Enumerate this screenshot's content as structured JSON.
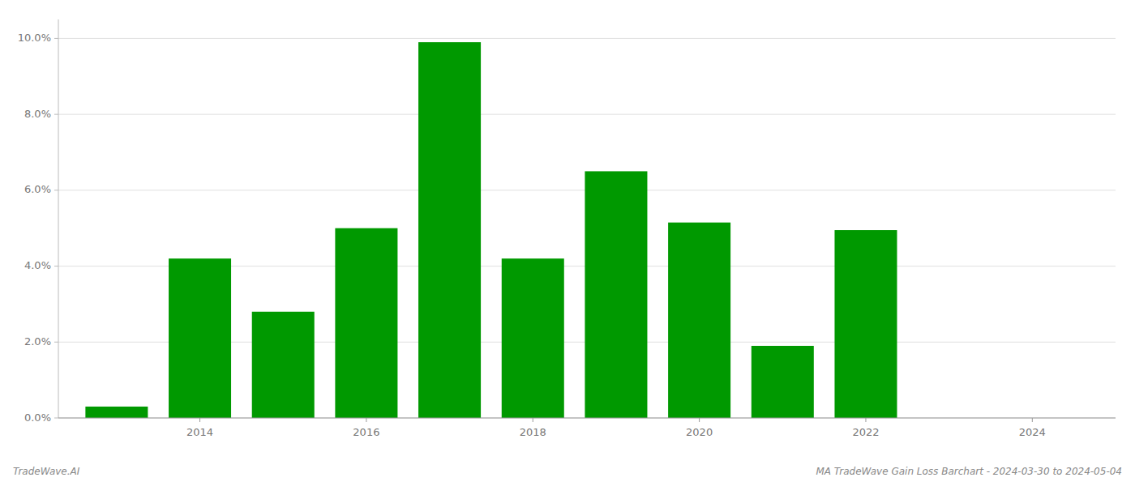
{
  "chart_data": {
    "type": "bar",
    "x": [
      2013,
      2014,
      2015,
      2016,
      2017,
      2018,
      2019,
      2020,
      2021,
      2022,
      2023
    ],
    "values": [
      0.003,
      0.042,
      0.028,
      0.05,
      0.099,
      0.042,
      0.065,
      0.0515,
      0.019,
      0.0495,
      0.0
    ],
    "color": "#009900",
    "xlim": [
      2012.3,
      2025.0
    ],
    "xticks": [
      2014,
      2016,
      2018,
      2020,
      2022,
      2024
    ],
    "ylim": [
      0,
      0.105
    ],
    "yticks": [
      {
        "value": 0.0,
        "label": "0.0%"
      },
      {
        "value": 0.02,
        "label": "2.0%"
      },
      {
        "value": 0.04,
        "label": "4.0%"
      },
      {
        "value": 0.06,
        "label": "6.0%"
      },
      {
        "value": 0.08,
        "label": "8.0%"
      },
      {
        "value": 0.1,
        "label": "10.0%"
      }
    ],
    "grid": true,
    "annotations": [
      "TradeWave.AI",
      "MA TradeWave Gain Loss Barchart - 2024-03-30 to 2024-05-04"
    ]
  }
}
